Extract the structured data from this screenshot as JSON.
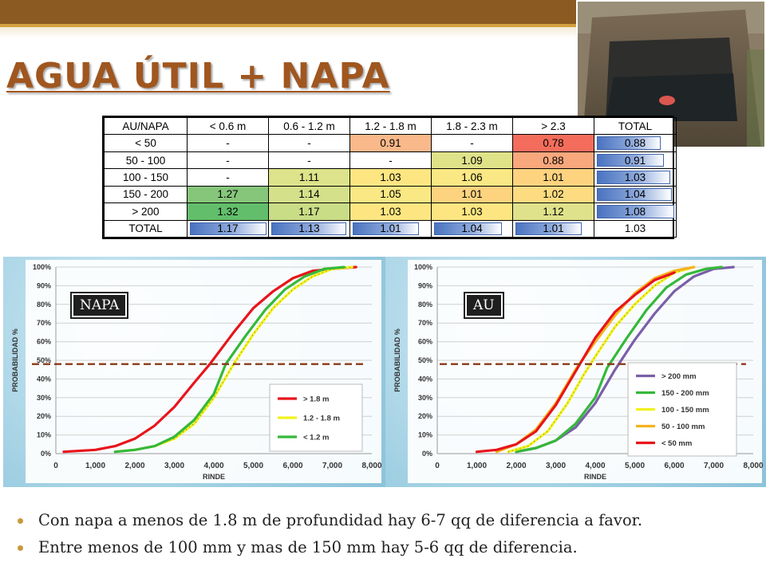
{
  "title": "AGUA ÚTIL + NAPA",
  "colors": {
    "header_brown": "#8b5a22",
    "title": "#a0561f",
    "bullet": "#c89a3a"
  },
  "table": {
    "headers": [
      "AU/NAPA",
      "< 0.6 m",
      "0.6 - 1.2 m",
      "1.2 - 1.8 m",
      "1.8 - 2.3 m",
      "> 2.3",
      "TOTAL"
    ],
    "rows": [
      {
        "label": "< 50",
        "cells": [
          "-",
          "-",
          "0.91",
          "-",
          "0.78"
        ],
        "total": "0.88"
      },
      {
        "label": "50 - 100",
        "cells": [
          "-",
          "-",
          "-",
          "1.09",
          "0.88"
        ],
        "total": "0.91"
      },
      {
        "label": "100 - 150",
        "cells": [
          "-",
          "1.11",
          "1.03",
          "1.06",
          "1.01"
        ],
        "total": "1.03"
      },
      {
        "label": "150 - 200",
        "cells": [
          "1.27",
          "1.14",
          "1.05",
          "1.01",
          "1.02"
        ],
        "total": "1.04"
      },
      {
        "label": "> 200",
        "cells": [
          "1.32",
          "1.17",
          "1.03",
          "1.03",
          "1.12"
        ],
        "total": "1.08"
      }
    ],
    "total_row": {
      "label": "TOTAL",
      "cells": [
        "1.17",
        "1.13",
        "1.01",
        "1.04",
        "1.01"
      ],
      "total": "1.03"
    }
  },
  "chart_data": [
    {
      "type": "line",
      "tag": "NAPA",
      "xlabel": "RINDE",
      "ylabel": "PROBABILIDAD %",
      "xlim": [
        0,
        8000
      ],
      "ylim": [
        0,
        100
      ],
      "x_ticks": [
        "0",
        "1,000",
        "2,000",
        "3,000",
        "4,000",
        "5,000",
        "6,000",
        "7,000",
        "8,000"
      ],
      "y_ticks": [
        "0%",
        "10%",
        "20%",
        "30%",
        "40%",
        "50%",
        "60%",
        "70%",
        "80%",
        "90%",
        "100%"
      ],
      "reference_line_y": 48,
      "legend_placement": "bottom-right",
      "series": [
        {
          "name": "> 1.8 m",
          "color": "#e8141c",
          "style": "solid",
          "points": [
            [
              200,
              1
            ],
            [
              1000,
              2
            ],
            [
              1500,
              4
            ],
            [
              2000,
              8
            ],
            [
              2500,
              15
            ],
            [
              3000,
              25
            ],
            [
              3500,
              38
            ],
            [
              3900,
              48
            ],
            [
              4500,
              65
            ],
            [
              5000,
              78
            ],
            [
              5500,
              87
            ],
            [
              6000,
              94
            ],
            [
              6500,
              98
            ],
            [
              7000,
              99
            ],
            [
              7600,
              100
            ]
          ]
        },
        {
          "name": "1.2 - 1.8 m",
          "color": "#f2f21e",
          "style": "dotted",
          "points": [
            [
              1500,
              1
            ],
            [
              2000,
              2
            ],
            [
              2500,
              4
            ],
            [
              3000,
              8
            ],
            [
              3500,
              16
            ],
            [
              4000,
              30
            ],
            [
              4500,
              48
            ],
            [
              5000,
              64
            ],
            [
              5500,
              78
            ],
            [
              6000,
              88
            ],
            [
              6500,
              95
            ],
            [
              7000,
              99
            ],
            [
              7500,
              100
            ]
          ]
        },
        {
          "name": "< 1.2 m",
          "color": "#35b83a",
          "style": "solid",
          "points": [
            [
              1500,
              1
            ],
            [
              2000,
              2
            ],
            [
              2500,
              4
            ],
            [
              3000,
              9
            ],
            [
              3500,
              18
            ],
            [
              4000,
              32
            ],
            [
              4300,
              48
            ],
            [
              4800,
              63
            ],
            [
              5300,
              77
            ],
            [
              5800,
              88
            ],
            [
              6300,
              95
            ],
            [
              6800,
              99
            ],
            [
              7300,
              100
            ]
          ]
        }
      ]
    },
    {
      "type": "line",
      "tag": "AU",
      "xlabel": "RINDE",
      "ylabel": "PROBABILIDAD %",
      "xlim": [
        0,
        8000
      ],
      "ylim": [
        0,
        100
      ],
      "x_ticks": [
        "0",
        "1,000",
        "2,000",
        "3,000",
        "4,000",
        "5,000",
        "6,000",
        "7,000",
        "8,000"
      ],
      "y_ticks": [
        "0%",
        "10%",
        "20%",
        "30%",
        "40%",
        "50%",
        "60%",
        "70%",
        "80%",
        "90%",
        "100%"
      ],
      "reference_line_y": 48,
      "legend_placement": "bottom-right",
      "series": [
        {
          "name": "> 200 mm",
          "color": "#7a5fa8",
          "style": "solid",
          "points": [
            [
              2000,
              1
            ],
            [
              2500,
              3
            ],
            [
              3000,
              7
            ],
            [
              3500,
              14
            ],
            [
              4000,
              27
            ],
            [
              4500,
              45
            ],
            [
              5000,
              61
            ],
            [
              5500,
              75
            ],
            [
              6000,
              87
            ],
            [
              6500,
              95
            ],
            [
              7000,
              99
            ],
            [
              7500,
              100
            ]
          ]
        },
        {
          "name": "150 - 200 mm",
          "color": "#35b83a",
          "style": "solid",
          "points": [
            [
              2000,
              1
            ],
            [
              2500,
              3
            ],
            [
              3000,
              7
            ],
            [
              3500,
              16
            ],
            [
              4000,
              30
            ],
            [
              4300,
              46
            ],
            [
              4800,
              62
            ],
            [
              5300,
              77
            ],
            [
              5800,
              89
            ],
            [
              6300,
              96
            ],
            [
              6800,
              99
            ],
            [
              7200,
              100
            ]
          ]
        },
        {
          "name": "100 - 150 mm",
          "color": "#f2f21e",
          "style": "dotted",
          "points": [
            [
              1800,
              1
            ],
            [
              2300,
              4
            ],
            [
              2800,
              12
            ],
            [
              3300,
              27
            ],
            [
              3700,
              42
            ],
            [
              4000,
              52
            ],
            [
              4500,
              68
            ],
            [
              5000,
              80
            ],
            [
              5500,
              90
            ],
            [
              6000,
              97
            ],
            [
              6500,
              100
            ]
          ]
        },
        {
          "name": "50 - 100 mm",
          "color": "#f5b21e",
          "style": "solid",
          "points": [
            [
              1500,
              1
            ],
            [
              2000,
              5
            ],
            [
              2500,
              13
            ],
            [
              3000,
              27
            ],
            [
              3500,
              45
            ],
            [
              4000,
              60
            ],
            [
              4500,
              74
            ],
            [
              5000,
              86
            ],
            [
              5500,
              94
            ],
            [
              6000,
              98
            ],
            [
              6500,
              100
            ]
          ]
        },
        {
          "name": "< 50 mm",
          "color": "#e8141c",
          "style": "solid",
          "points": [
            [
              1000,
              1
            ],
            [
              1500,
              2
            ],
            [
              2000,
              5
            ],
            [
              2500,
              12
            ],
            [
              3000,
              26
            ],
            [
              3500,
              44
            ],
            [
              4000,
              62
            ],
            [
              4500,
              76
            ],
            [
              5000,
              85
            ],
            [
              5500,
              93
            ],
            [
              6000,
              97
            ]
          ]
        }
      ]
    }
  ],
  "bullets": [
    "Con napa a menos de 1.8 m de profundidad hay 6-7  qq de diferencia a favor.",
    "Entre menos de 100 mm y mas de 150 mm hay 5-6 qq de diferencia."
  ]
}
